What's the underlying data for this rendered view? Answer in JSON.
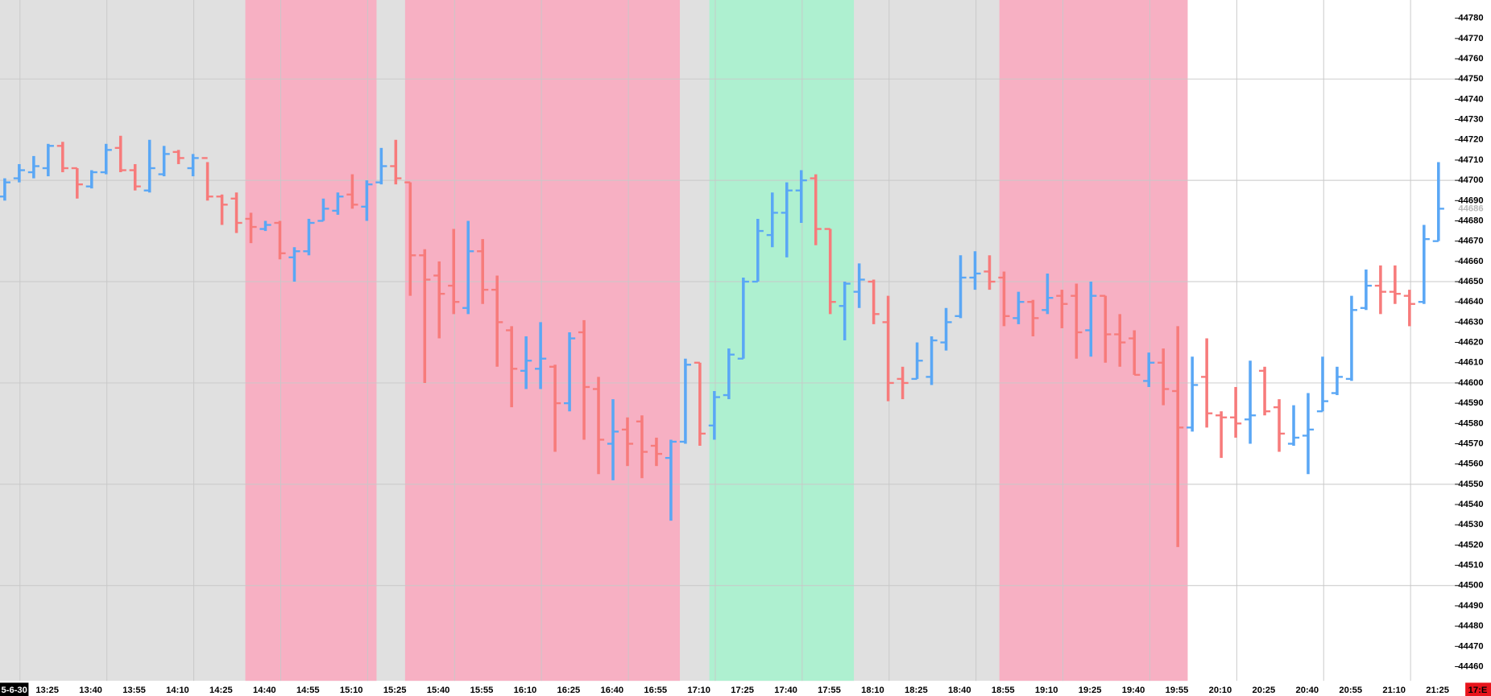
{
  "chart_data": {
    "type": "ohlc",
    "categories": [
      null,
      null,
      null,
      "13:25",
      null,
      null,
      "13:40",
      null,
      null,
      "13:55",
      null,
      null,
      "14:10",
      null,
      null,
      "14:25",
      null,
      null,
      "14:40",
      null,
      null,
      "14:55",
      null,
      null,
      "15:10",
      null,
      null,
      "15:25",
      null,
      null,
      "15:40",
      null,
      null,
      "15:55",
      null,
      null,
      "16:10",
      null,
      null,
      "16:25",
      null,
      null,
      "16:40",
      null,
      null,
      "16:55",
      null,
      null,
      "17:10",
      null,
      null,
      "17:25",
      null,
      null,
      "17:40",
      null,
      null,
      "17:55",
      null,
      null,
      "18:10",
      null,
      null,
      "18:25",
      null,
      null,
      "18:40",
      null,
      null,
      "18:55",
      null,
      null,
      "19:10",
      null,
      null,
      "19:25",
      null,
      null,
      "19:40",
      null,
      null,
      "19:55",
      null,
      null,
      "20:10",
      null,
      null,
      "20:25",
      null,
      null,
      "20:40",
      null,
      null,
      "20:55",
      null,
      null,
      "21:10",
      null,
      null,
      "21:25"
    ],
    "open": [
      44692,
      44701,
      44704,
      44706,
      44717,
      44706,
      44697,
      44704,
      44716,
      44705,
      44695,
      44703,
      44714,
      44706,
      44711,
      44692,
      44691,
      44681,
      44676,
      44679,
      44662,
      44665,
      44680,
      44685,
      44693,
      44687,
      44699,
      44707,
      44699,
      44663,
      44653,
      44648,
      44637,
      44665,
      44646,
      44626,
      44606,
      44607,
      44608,
      44590,
      44625,
      44597,
      44570,
      44577,
      44581,
      44569,
      44563,
      44571,
      44610,
      44579,
      44594,
      44612,
      44650,
      44673,
      44684,
      44695,
      44701,
      44676,
      44638,
      44645,
      44650,
      44630,
      44602,
      44602,
      44603,
      44620,
      44633,
      44652,
      44655,
      44652,
      44632,
      44640,
      44636,
      44643,
      44643,
      44626,
      44643,
      44624,
      44622,
      44601,
      44610,
      44596,
      44578,
      44603,
      44584,
      44583,
      44582,
      44606,
      44588,
      44570,
      44574,
      44586,
      44595,
      44602,
      44637,
      44648,
      44645,
      44643,
      44640,
      44670
    ],
    "high": [
      44701,
      44708,
      44712,
      44718,
      44719,
      44706,
      44705,
      44718,
      44722,
      44708,
      44720,
      44717,
      44715,
      44713,
      44709,
      44693,
      44694,
      44684,
      44680,
      44680,
      44667,
      44681,
      44691,
      44694,
      44703,
      44700,
      44716,
      44720,
      44699,
      44666,
      44660,
      44676,
      44680,
      44671,
      44653,
      44628,
      44623,
      44630,
      44609,
      44625,
      44631,
      44603,
      44592,
      44583,
      44584,
      44573,
      44572,
      44612,
      44610,
      44596,
      44617,
      44652,
      44681,
      44694,
      44699,
      44705,
      44703,
      44676,
      44650,
      44659,
      44651,
      44643,
      44608,
      44620,
      44623,
      44637,
      44663,
      44665,
      44663,
      44655,
      44645,
      44641,
      44654,
      44646,
      44649,
      44650,
      44643,
      44634,
      44626,
      44615,
      44617,
      44628,
      44613,
      44622,
      44586,
      44598,
      44611,
      44608,
      44592,
      44589,
      44595,
      44613,
      44608,
      44643,
      44656,
      44658,
      44658,
      44646,
      44678,
      44709
    ],
    "low": [
      44690,
      44699,
      44701,
      44702,
      44704,
      44691,
      44696,
      44703,
      44704,
      44695,
      44694,
      44702,
      44708,
      44702,
      44690,
      44678,
      44674,
      44669,
      44675,
      44661,
      44650,
      44663,
      44680,
      44683,
      44686,
      44680,
      44698,
      44698,
      44643,
      44600,
      44622,
      44634,
      44634,
      44639,
      44608,
      44588,
      44597,
      44597,
      44566,
      44586,
      44572,
      44555,
      44552,
      44559,
      44553,
      44559,
      44532,
      44570,
      44569,
      44572,
      44592,
      44612,
      44650,
      44667,
      44662,
      44679,
      44668,
      44634,
      44621,
      44637,
      44629,
      44591,
      44592,
      44602,
      44599,
      44616,
      44632,
      44646,
      44646,
      44628,
      44629,
      44623,
      44634,
      44627,
      44612,
      44613,
      44610,
      44608,
      44604,
      44598,
      44589,
      44519,
      44576,
      44578,
      44563,
      44573,
      44570,
      44584,
      44566,
      44569,
      44555,
      44586,
      44594,
      44601,
      44636,
      44634,
      44639,
      44628,
      44639,
      44670
    ],
    "close": [
      44699,
      44705,
      44707,
      44717,
      44706,
      44698,
      44704,
      44715,
      44705,
      44697,
      44706,
      44713,
      44711,
      44711,
      44692,
      44688,
      44679,
      44677,
      44678,
      44664,
      44665,
      44679,
      44686,
      44692,
      44688,
      44698,
      44707,
      44701,
      44663,
      44651,
      44644,
      44640,
      44665,
      44646,
      44630,
      44607,
      44611,
      44612,
      44590,
      44622,
      44598,
      44572,
      44576,
      44570,
      44566,
      44565,
      44571,
      44609,
      44575,
      44593,
      44614,
      44650,
      44675,
      44684,
      44695,
      44700,
      44676,
      44640,
      44649,
      44651,
      44634,
      44600,
      44600,
      44611,
      44621,
      44630,
      44652,
      44654,
      44650,
      44633,
      44640,
      44632,
      44642,
      44639,
      44625,
      44643,
      44624,
      44620,
      44604,
      44610,
      44597,
      44578,
      44599,
      44585,
      44583,
      44580,
      44584,
      44586,
      44575,
      44573,
      44577,
      44591,
      44603,
      44636,
      44648,
      44645,
      44644,
      44639,
      44671,
      44686
    ],
    "up_color": "#5aa7f5",
    "down_color": "#f77b7b",
    "ylim": [
      44453,
      44789
    ],
    "yticks": [
      44460,
      44470,
      44480,
      44490,
      44500,
      44510,
      44520,
      44530,
      44540,
      44550,
      44560,
      44570,
      44580,
      44590,
      44600,
      44610,
      44620,
      44630,
      44640,
      44650,
      44660,
      44670,
      44680,
      44690,
      44700,
      44710,
      44720,
      44730,
      44740,
      44750,
      44760,
      44770,
      44780
    ],
    "grid": true,
    "last_price": 44686,
    "date_label": "5-6-30",
    "clock_label": "17:E"
  }
}
